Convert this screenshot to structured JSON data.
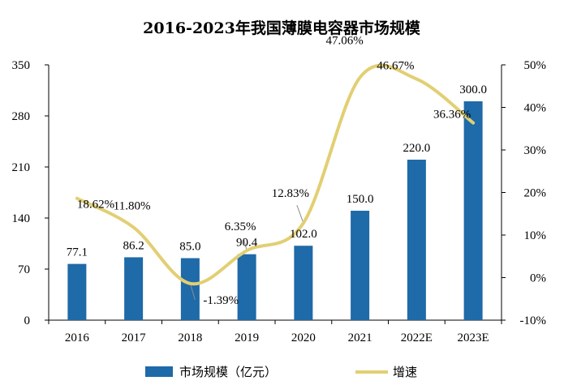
{
  "chart_data": {
    "type": "bar",
    "title": "2016-2023年我国薄膜电容器市场规模",
    "categories": [
      "2016",
      "2017",
      "2018",
      "2019",
      "2020",
      "2021",
      "2022E",
      "2023E"
    ],
    "series": [
      {
        "name": "市场规模（亿元）",
        "type": "bar",
        "axis": "left",
        "values": [
          77.1,
          86.2,
          85.0,
          90.4,
          102.0,
          150.0,
          220.0,
          300.0
        ],
        "labels": [
          "77.1",
          "86.2",
          "85.0",
          "90.4",
          "102.0",
          "150.0",
          "220.0",
          "300.0"
        ]
      },
      {
        "name": "增速",
        "type": "line",
        "axis": "right",
        "values": [
          18.62,
          11.8,
          -1.39,
          6.35,
          12.83,
          47.06,
          46.67,
          36.36
        ],
        "labels": [
          "18.62%",
          "11.80%",
          "-1.39%",
          "6.35%",
          "12.83%",
          "47.06%",
          "46.67%",
          "36.36%"
        ]
      }
    ],
    "y_left": {
      "min": 0,
      "max": 350,
      "ticks": [
        "0",
        "70",
        "140",
        "210",
        "280",
        "350"
      ]
    },
    "y_right": {
      "min": -10,
      "max": 50,
      "ticks": [
        "-10%",
        "0%",
        "10%",
        "20%",
        "30%",
        "40%",
        "50%"
      ]
    },
    "legend_position": "bottom",
    "colors": {
      "bar": "#1f6aa8",
      "line": "#e2cf73",
      "leader": "#8c8c8c"
    }
  }
}
